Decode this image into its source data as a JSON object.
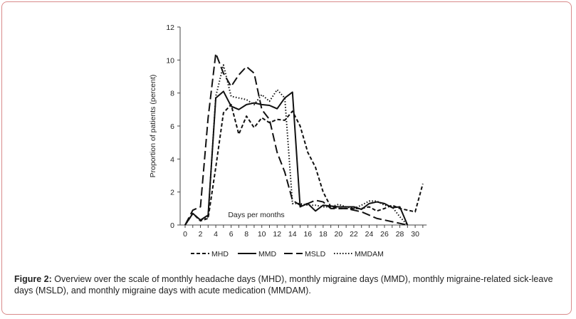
{
  "chart_data": {
    "type": "line",
    "title": "",
    "xlabel": "Days per months",
    "ylabel": "Proportion of patients (percent)",
    "xlim": [
      0,
      31
    ],
    "ylim": [
      0,
      12
    ],
    "xticks": [
      0,
      2,
      4,
      6,
      8,
      10,
      12,
      14,
      16,
      18,
      20,
      22,
      24,
      26,
      28,
      30
    ],
    "yticks": [
      0,
      2,
      4,
      6,
      8,
      10,
      12
    ],
    "grid": false,
    "legend_position": "bottom",
    "series": [
      {
        "name": "MHD",
        "style": "short-dash",
        "x": [
          0,
          1,
          2,
          3,
          4,
          5,
          6,
          7,
          8,
          9,
          10,
          11,
          12,
          13,
          14,
          15,
          16,
          17,
          18,
          19,
          20,
          21,
          22,
          23,
          24,
          25,
          26,
          27,
          28,
          29,
          30,
          31
        ],
        "values": [
          0,
          0.7,
          0.25,
          0.4,
          3.5,
          6.8,
          7.3,
          5.5,
          6.6,
          5.9,
          6.5,
          6.2,
          6.4,
          6.35,
          6.9,
          6.0,
          4.4,
          3.5,
          2.0,
          1.1,
          1.0,
          1.0,
          1.0,
          1.0,
          1.1,
          0.85,
          1.0,
          1.2,
          1.0,
          0.9,
          0.8,
          2.5
        ]
      },
      {
        "name": "MMD",
        "style": "solid",
        "x": [
          0,
          1,
          2,
          3,
          4,
          5,
          6,
          7,
          8,
          9,
          10,
          11,
          12,
          13,
          14,
          15,
          16,
          17,
          18,
          19,
          20,
          21,
          22,
          23,
          24,
          25,
          26,
          27,
          28,
          29
        ],
        "values": [
          0,
          0.7,
          0.3,
          0.6,
          7.7,
          8.1,
          7.2,
          7.0,
          7.3,
          7.4,
          7.3,
          7.25,
          7.05,
          7.7,
          8.05,
          1.1,
          1.3,
          0.85,
          1.2,
          1.15,
          1.1,
          1.1,
          1.1,
          0.95,
          1.3,
          1.4,
          1.3,
          1.05,
          1.1,
          0
        ]
      },
      {
        "name": "MSLD",
        "style": "long-dash",
        "x": [
          0,
          1,
          2,
          3,
          4,
          5,
          6,
          7,
          8,
          9,
          10,
          11,
          12,
          13,
          14,
          15,
          16,
          17,
          18,
          19,
          20,
          21,
          22,
          23,
          24,
          25,
          26,
          27,
          28,
          29
        ],
        "values": [
          0,
          0.9,
          1.1,
          6.5,
          10.4,
          9.2,
          8.4,
          9.1,
          9.6,
          9.2,
          7.0,
          6.4,
          4.4,
          3.2,
          1.5,
          1.2,
          1.3,
          1.5,
          1.4,
          1.0,
          1.0,
          1.0,
          0.9,
          0.8,
          0.6,
          0.4,
          0.3,
          0.2,
          0.1,
          0
        ]
      },
      {
        "name": "MMDAM",
        "style": "dotted",
        "x": [
          0,
          1,
          2,
          3,
          4,
          5,
          6,
          7,
          8,
          9,
          10,
          11,
          12,
          13,
          14,
          15,
          16,
          17,
          18,
          19,
          20,
          21,
          22,
          23,
          24,
          25,
          26,
          27,
          28,
          29
        ],
        "values": [
          0,
          0.7,
          0.3,
          0.5,
          7.8,
          9.7,
          7.8,
          7.7,
          7.6,
          7.3,
          7.9,
          7.5,
          8.2,
          7.7,
          1.3,
          1.3,
          1.2,
          1.2,
          1.1,
          1.1,
          1.25,
          1.1,
          1.0,
          1.2,
          1.45,
          1.45,
          1.2,
          1.1,
          0.5,
          0
        ]
      }
    ],
    "line_color": "#111111"
  },
  "caption": {
    "label": "Figure 2:",
    "text": " Overview over the scale of monthly headache days (MHD), monthly migraine days (MMD), monthly migraine-related sick-leave days (MSLD), and monthly migraine days with acute medication (MMDAM)."
  },
  "colors": {
    "frame_border": "#d98a8a"
  }
}
